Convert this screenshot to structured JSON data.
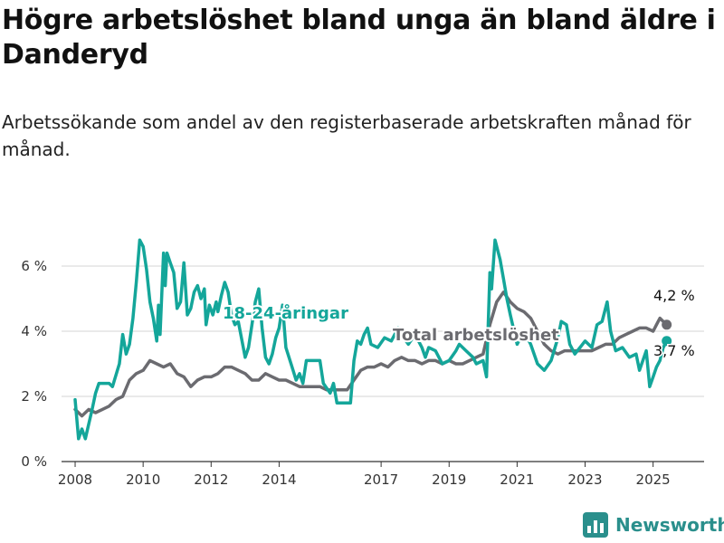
{
  "header": {
    "title": "Högre arbetslöshet bland unga än bland äldre i Danderyd",
    "subtitle": "Arbetssökande som andel av den registerbaserade arbetskraften månad för månad."
  },
  "brand": {
    "name": "Newsworthy",
    "icon": "bar-chart-logo-icon",
    "color": "#2a8f8c"
  },
  "chart_data": {
    "type": "line",
    "title": "Högre arbetslöshet bland unga än bland äldre i Danderyd",
    "subtitle": "Arbetssökande som andel av den registerbaserade arbetskraften månad för månad.",
    "xlabel": "",
    "ylabel": "",
    "xlim": [
      2007.6,
      2026.5
    ],
    "ylim": [
      0,
      7.5
    ],
    "x_ticks": [
      "2008",
      "2010",
      "2012",
      "2014",
      "2017",
      "2019",
      "2021",
      "2023",
      "2025"
    ],
    "x_tick_values": [
      2008,
      2010,
      2012,
      2014,
      2017,
      2019,
      2021,
      2023,
      2025
    ],
    "y_ticks": [
      "0 %",
      "2 %",
      "4 %",
      "6 %"
    ],
    "y_tick_values": [
      0,
      2,
      4,
      6
    ],
    "grid": "horizontal",
    "series": [
      {
        "name": "18-24-åringar",
        "color": "#14a69a",
        "end_label": "3,7 %",
        "points": [
          [
            2008.0,
            1.9
          ],
          [
            2008.1,
            0.7
          ],
          [
            2008.2,
            1.0
          ],
          [
            2008.3,
            0.7
          ],
          [
            2008.5,
            1.6
          ],
          [
            2008.6,
            2.1
          ],
          [
            2008.7,
            2.4
          ],
          [
            2009.0,
            2.4
          ],
          [
            2009.1,
            2.3
          ],
          [
            2009.3,
            3.0
          ],
          [
            2009.4,
            3.9
          ],
          [
            2009.5,
            3.3
          ],
          [
            2009.6,
            3.6
          ],
          [
            2009.7,
            4.4
          ],
          [
            2009.8,
            5.5
          ],
          [
            2009.9,
            6.8
          ],
          [
            2010.0,
            6.6
          ],
          [
            2010.1,
            5.9
          ],
          [
            2010.2,
            4.9
          ],
          [
            2010.3,
            4.4
          ],
          [
            2010.4,
            3.7
          ],
          [
            2010.45,
            4.8
          ],
          [
            2010.5,
            3.9
          ],
          [
            2010.6,
            6.4
          ],
          [
            2010.65,
            5.4
          ],
          [
            2010.7,
            6.4
          ],
          [
            2010.8,
            6.1
          ],
          [
            2010.9,
            5.8
          ],
          [
            2011.0,
            4.7
          ],
          [
            2011.1,
            4.9
          ],
          [
            2011.2,
            6.1
          ],
          [
            2011.3,
            4.5
          ],
          [
            2011.4,
            4.7
          ],
          [
            2011.5,
            5.2
          ],
          [
            2011.6,
            5.4
          ],
          [
            2011.7,
            5.0
          ],
          [
            2011.8,
            5.3
          ],
          [
            2011.85,
            4.2
          ],
          [
            2011.95,
            4.8
          ],
          [
            2012.05,
            4.5
          ],
          [
            2012.15,
            4.9
          ],
          [
            2012.2,
            4.6
          ],
          [
            2012.3,
            5.1
          ],
          [
            2012.4,
            5.5
          ],
          [
            2012.5,
            5.2
          ],
          [
            2012.6,
            4.5
          ],
          [
            2012.7,
            4.2
          ],
          [
            2012.8,
            4.3
          ],
          [
            2013.0,
            3.2
          ],
          [
            2013.1,
            3.5
          ],
          [
            2013.2,
            4.2
          ],
          [
            2013.3,
            4.9
          ],
          [
            2013.4,
            5.3
          ],
          [
            2013.5,
            4.1
          ],
          [
            2013.6,
            3.2
          ],
          [
            2013.7,
            3.0
          ],
          [
            2013.8,
            3.3
          ],
          [
            2013.9,
            3.8
          ],
          [
            2014.0,
            4.1
          ],
          [
            2014.1,
            4.8
          ],
          [
            2014.2,
            3.5
          ],
          [
            2014.35,
            3.0
          ],
          [
            2014.5,
            2.5
          ],
          [
            2014.6,
            2.7
          ],
          [
            2014.7,
            2.4
          ],
          [
            2014.8,
            3.1
          ],
          [
            2015.0,
            3.1
          ],
          [
            2015.2,
            3.1
          ],
          [
            2015.3,
            2.4
          ],
          [
            2015.5,
            2.1
          ],
          [
            2015.6,
            2.4
          ],
          [
            2015.7,
            1.8
          ],
          [
            2015.9,
            1.8
          ],
          [
            2016.1,
            1.8
          ],
          [
            2016.2,
            3.1
          ],
          [
            2016.3,
            3.7
          ],
          [
            2016.4,
            3.6
          ],
          [
            2016.5,
            3.9
          ],
          [
            2016.6,
            4.1
          ],
          [
            2016.7,
            3.6
          ],
          [
            2016.9,
            3.5
          ],
          [
            2017.1,
            3.8
          ],
          [
            2017.3,
            3.7
          ],
          [
            2017.5,
            4.1
          ],
          [
            2017.6,
            3.9
          ],
          [
            2017.8,
            3.6
          ],
          [
            2018.0,
            3.9
          ],
          [
            2018.2,
            3.5
          ],
          [
            2018.3,
            3.2
          ],
          [
            2018.4,
            3.5
          ],
          [
            2018.6,
            3.4
          ],
          [
            2018.8,
            3.0
          ],
          [
            2019.0,
            3.1
          ],
          [
            2019.2,
            3.4
          ],
          [
            2019.3,
            3.6
          ],
          [
            2019.5,
            3.4
          ],
          [
            2019.7,
            3.2
          ],
          [
            2019.8,
            3.0
          ],
          [
            2020.0,
            3.1
          ],
          [
            2020.1,
            2.6
          ],
          [
            2020.2,
            5.8
          ],
          [
            2020.25,
            5.3
          ],
          [
            2020.35,
            6.8
          ],
          [
            2020.5,
            6.2
          ],
          [
            2020.6,
            5.6
          ],
          [
            2020.7,
            5.0
          ],
          [
            2020.8,
            4.5
          ],
          [
            2021.0,
            3.6
          ],
          [
            2021.2,
            4.0
          ],
          [
            2021.4,
            3.6
          ],
          [
            2021.6,
            3.0
          ],
          [
            2021.8,
            2.8
          ],
          [
            2022.0,
            3.1
          ],
          [
            2022.2,
            3.8
          ],
          [
            2022.3,
            4.3
          ],
          [
            2022.45,
            4.2
          ],
          [
            2022.55,
            3.6
          ],
          [
            2022.7,
            3.3
          ],
          [
            2022.85,
            3.5
          ],
          [
            2023.0,
            3.7
          ],
          [
            2023.2,
            3.5
          ],
          [
            2023.35,
            4.2
          ],
          [
            2023.5,
            4.3
          ],
          [
            2023.65,
            4.9
          ],
          [
            2023.75,
            4.0
          ],
          [
            2023.9,
            3.4
          ],
          [
            2024.1,
            3.5
          ],
          [
            2024.3,
            3.2
          ],
          [
            2024.5,
            3.3
          ],
          [
            2024.6,
            2.8
          ],
          [
            2024.8,
            3.4
          ],
          [
            2024.9,
            2.3
          ],
          [
            2025.0,
            2.6
          ],
          [
            2025.1,
            2.9
          ],
          [
            2025.2,
            3.1
          ],
          [
            2025.3,
            3.5
          ],
          [
            2025.4,
            3.7
          ]
        ]
      },
      {
        "name": "Total arbetslöshet",
        "color": "#6b6b70",
        "end_label": "4,2 %",
        "points": [
          [
            2008.0,
            1.6
          ],
          [
            2008.2,
            1.4
          ],
          [
            2008.4,
            1.6
          ],
          [
            2008.6,
            1.5
          ],
          [
            2008.8,
            1.6
          ],
          [
            2009.0,
            1.7
          ],
          [
            2009.2,
            1.9
          ],
          [
            2009.4,
            2.0
          ],
          [
            2009.6,
            2.5
          ],
          [
            2009.8,
            2.7
          ],
          [
            2010.0,
            2.8
          ],
          [
            2010.2,
            3.1
          ],
          [
            2010.4,
            3.0
          ],
          [
            2010.6,
            2.9
          ],
          [
            2010.8,
            3.0
          ],
          [
            2011.0,
            2.7
          ],
          [
            2011.2,
            2.6
          ],
          [
            2011.4,
            2.3
          ],
          [
            2011.6,
            2.5
          ],
          [
            2011.8,
            2.6
          ],
          [
            2012.0,
            2.6
          ],
          [
            2012.2,
            2.7
          ],
          [
            2012.4,
            2.9
          ],
          [
            2012.6,
            2.9
          ],
          [
            2012.8,
            2.8
          ],
          [
            2013.0,
            2.7
          ],
          [
            2013.2,
            2.5
          ],
          [
            2013.4,
            2.5
          ],
          [
            2013.6,
            2.7
          ],
          [
            2013.8,
            2.6
          ],
          [
            2014.0,
            2.5
          ],
          [
            2014.2,
            2.5
          ],
          [
            2014.4,
            2.4
          ],
          [
            2014.6,
            2.3
          ],
          [
            2014.8,
            2.3
          ],
          [
            2015.0,
            2.3
          ],
          [
            2015.2,
            2.3
          ],
          [
            2015.4,
            2.2
          ],
          [
            2015.6,
            2.2
          ],
          [
            2015.8,
            2.2
          ],
          [
            2016.0,
            2.2
          ],
          [
            2016.2,
            2.5
          ],
          [
            2016.4,
            2.8
          ],
          [
            2016.6,
            2.9
          ],
          [
            2016.8,
            2.9
          ],
          [
            2017.0,
            3.0
          ],
          [
            2017.2,
            2.9
          ],
          [
            2017.4,
            3.1
          ],
          [
            2017.6,
            3.2
          ],
          [
            2017.8,
            3.1
          ],
          [
            2018.0,
            3.1
          ],
          [
            2018.2,
            3.0
          ],
          [
            2018.4,
            3.1
          ],
          [
            2018.6,
            3.1
          ],
          [
            2018.8,
            3.0
          ],
          [
            2019.0,
            3.1
          ],
          [
            2019.2,
            3.0
          ],
          [
            2019.4,
            3.0
          ],
          [
            2019.6,
            3.1
          ],
          [
            2019.8,
            3.2
          ],
          [
            2020.0,
            3.3
          ],
          [
            2020.2,
            4.2
          ],
          [
            2020.4,
            4.9
          ],
          [
            2020.6,
            5.2
          ],
          [
            2020.8,
            4.9
          ],
          [
            2021.0,
            4.7
          ],
          [
            2021.2,
            4.6
          ],
          [
            2021.4,
            4.4
          ],
          [
            2021.6,
            4.0
          ],
          [
            2021.8,
            3.6
          ],
          [
            2022.0,
            3.4
          ],
          [
            2022.2,
            3.3
          ],
          [
            2022.4,
            3.4
          ],
          [
            2022.6,
            3.4
          ],
          [
            2022.8,
            3.4
          ],
          [
            2023.0,
            3.4
          ],
          [
            2023.2,
            3.4
          ],
          [
            2023.4,
            3.5
          ],
          [
            2023.6,
            3.6
          ],
          [
            2023.8,
            3.6
          ],
          [
            2024.0,
            3.8
          ],
          [
            2024.2,
            3.9
          ],
          [
            2024.4,
            4.0
          ],
          [
            2024.6,
            4.1
          ],
          [
            2024.8,
            4.1
          ],
          [
            2025.0,
            4.0
          ],
          [
            2025.1,
            4.2
          ],
          [
            2025.2,
            4.4
          ],
          [
            2025.3,
            4.3
          ],
          [
            2025.4,
            4.2
          ]
        ]
      }
    ]
  }
}
